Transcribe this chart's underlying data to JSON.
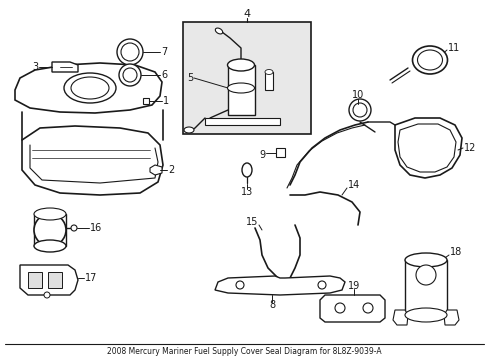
{
  "title": "2008 Mercury Mariner Fuel Supply Cover Seal Diagram for 8L8Z-9039-A",
  "bg_color": "#ffffff",
  "line_color": "#1a1a1a",
  "fig_width": 4.89,
  "fig_height": 3.6,
  "dpi": 100
}
